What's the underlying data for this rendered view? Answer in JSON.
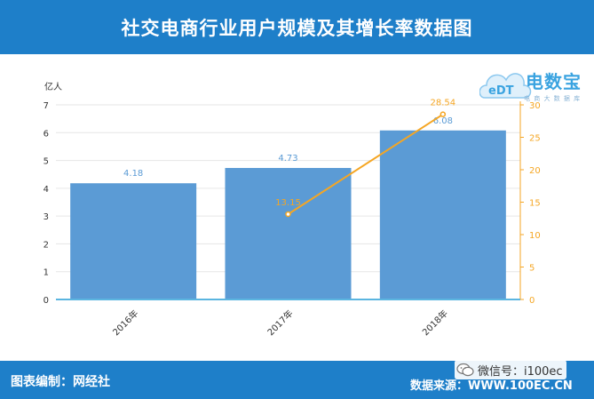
{
  "header": {
    "title": "社交电商行业用户规模及其增长率数据图"
  },
  "logo": {
    "name": "电数宝",
    "badge": "eDT",
    "tagline": "电 商 大 数 据 库"
  },
  "footer": {
    "left": "图表编制：网经社",
    "right": "数据来源：WWW.100EC.CN",
    "wechat": "微信号：i100ec"
  },
  "colors": {
    "header_bg": "#1e7fc9",
    "bar": "#5b9bd5",
    "line": "#f5a623",
    "bar_label": "#5b9bd5",
    "line_label": "#f5a623"
  },
  "chart_data": {
    "type": "bar",
    "categories": [
      "2016年",
      "2017年",
      "2018年"
    ],
    "y_left_label": "亿人",
    "y_left_lim": [
      0,
      7
    ],
    "y_left_ticks": [
      "0",
      "1",
      "2",
      "3",
      "4",
      "5",
      "6",
      "7"
    ],
    "y_right_lim": [
      0,
      30
    ],
    "y_right_ticks": [
      "0",
      "5",
      "10",
      "15",
      "20",
      "25",
      "30"
    ],
    "series": [
      {
        "type": "bar",
        "axis": "left",
        "values": [
          4.18,
          4.73,
          6.08
        ],
        "labels": [
          "4.18",
          "4.73",
          "6.08"
        ]
      },
      {
        "type": "line",
        "axis": "right",
        "values": [
          null,
          13.15,
          28.54
        ],
        "labels": [
          "",
          "13.15",
          "28.54"
        ]
      }
    ],
    "grid": true
  }
}
